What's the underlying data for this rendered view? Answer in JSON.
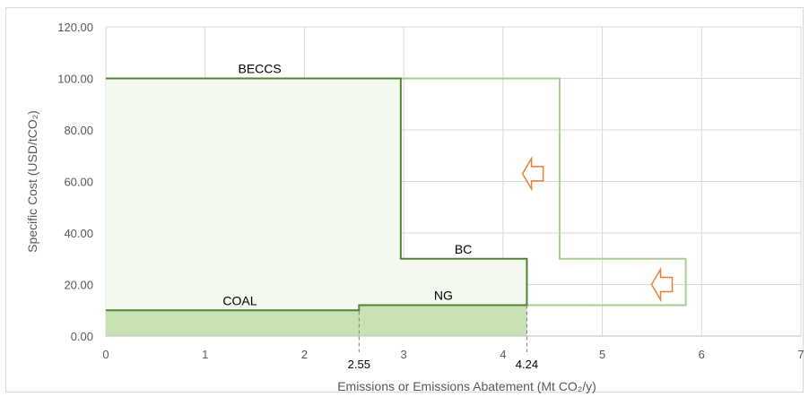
{
  "chart_data": {
    "type": "step-area",
    "title": "",
    "xlabel": "Emissions or Emissions Abatement (Mt CO₂/y)",
    "ylabel": "Specific Cost (USD/tCO₂)",
    "xlim": [
      0,
      7
    ],
    "ylim": [
      0,
      120
    ],
    "x_ticks": [
      "0",
      "1",
      "2",
      "3",
      "4",
      "5",
      "6",
      "7"
    ],
    "y_ticks": [
      "0.00",
      "20.00",
      "40.00",
      "60.00",
      "80.00",
      "100.00",
      "120.00"
    ],
    "grid": true,
    "colors": {
      "dark_line": "#548235",
      "light_line": "#a9d08e",
      "light_fill": "#f3f9ee",
      "coal_fill": "#c9e2b3",
      "arrow": "#ed7d31",
      "grid": "#d9d9d9"
    },
    "series": [
      {
        "name": "",
        "style": "dark",
        "points": [
          [
            0,
            100
          ],
          [
            2.97,
            100
          ],
          [
            2.97,
            30
          ],
          [
            4.24,
            30
          ],
          [
            4.24,
            12
          ],
          [
            2.55,
            12
          ],
          [
            2.55,
            10
          ],
          [
            0,
            10
          ]
        ]
      },
      {
        "name": "",
        "style": "light",
        "points": [
          [
            2.97,
            100
          ],
          [
            4.57,
            100
          ],
          [
            4.57,
            30
          ],
          [
            5.84,
            30
          ],
          [
            5.84,
            12
          ],
          [
            2.55,
            12
          ]
        ]
      }
    ],
    "segment_labels": [
      {
        "text": "BECCS",
        "x": 1.55,
        "y": 100
      },
      {
        "text": "BC",
        "x": 3.6,
        "y": 30
      },
      {
        "text": "NG",
        "x": 3.4,
        "y": 12
      },
      {
        "text": "COAL",
        "x": 1.35,
        "y": 10
      }
    ],
    "markers": [
      {
        "value": 2.55,
        "label": "2.55"
      },
      {
        "value": 4.24,
        "label": "4.24"
      }
    ],
    "arrows": [
      {
        "x": 4.3,
        "y": 63,
        "direction": "left"
      },
      {
        "x": 5.6,
        "y": 20,
        "direction": "left"
      }
    ]
  }
}
